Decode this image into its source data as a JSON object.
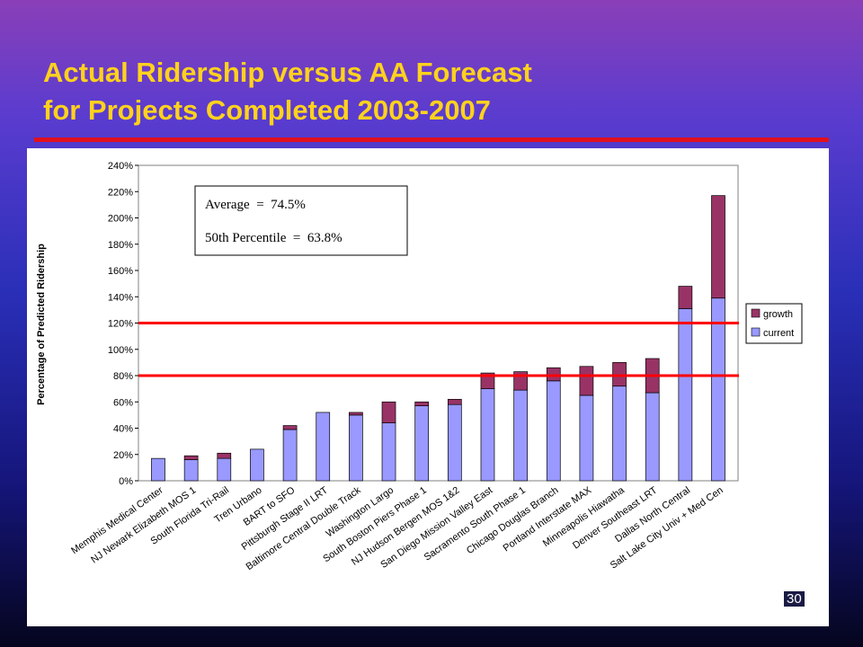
{
  "slide": {
    "title_line1": "Actual Ridership versus AA Forecast",
    "title_line2": "for Projects Completed 2003-2007",
    "page_number": "30"
  },
  "colors": {
    "title": "#ffd21c",
    "rule": "#e0101c",
    "growth": "#993366",
    "current": "#9999ff",
    "band_lines": "#ff0000"
  },
  "chart_data": {
    "type": "bar",
    "stacked": true,
    "ylabel": "Percentage of Predicted Ridership",
    "ylim": [
      0,
      240
    ],
    "yticks": [
      "0%",
      "20%",
      "40%",
      "60%",
      "80%",
      "100%",
      "120%",
      "140%",
      "160%",
      "180%",
      "200%",
      "220%",
      "240%"
    ],
    "categories": [
      "Memphis Medical Center",
      "NJ Newark Elizabeth MOS 1",
      "South Florida Tri-Rail",
      "Tren Urbano",
      "BART to SFO",
      "Pittsburgh Stage II LRT",
      "Baltimore Central Double Track",
      "Washington Largo",
      "South Boston Piers Phase 1",
      "NJ Hudson Bergen MOS 1&2",
      "San Diego Mission Valley East",
      "Sacramento South Phase 1",
      "Chicago Douglas Branch",
      "Portland Interstate MAX",
      "Minneapolis Hiawatha",
      "Denver Southeast LRT",
      "Dallas North Central",
      "Salt Lake City Univ + Med Cen"
    ],
    "series": [
      {
        "name": "current",
        "values": [
          17,
          16,
          17,
          24,
          39,
          52,
          50,
          44,
          57,
          58,
          70,
          69,
          76,
          65,
          72,
          67,
          131,
          139
        ]
      },
      {
        "name": "growth",
        "values": [
          0,
          3,
          4,
          0,
          3,
          0,
          2,
          16,
          3,
          4,
          12,
          14,
          10,
          22,
          18,
          26,
          17,
          78
        ]
      }
    ],
    "legend": [
      "growth",
      "current"
    ],
    "legend_position": "right",
    "reference_lines": [
      80,
      120
    ],
    "annotation": {
      "line1": "Average  =  74.5%",
      "line2": "50th Percentile  =  63.8%"
    },
    "grid": false
  }
}
